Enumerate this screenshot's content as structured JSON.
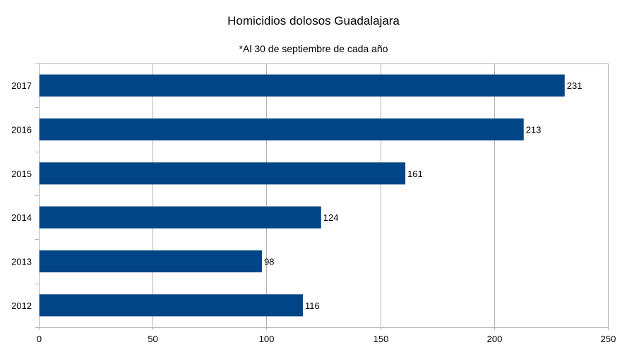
{
  "chart_data": {
    "type": "bar",
    "orientation": "horizontal",
    "title": "Homicidios dolosos Guadalajara",
    "subtitle": "*Al 30 de septiembre de cada año",
    "categories": [
      "2017",
      "2016",
      "2015",
      "2014",
      "2013",
      "2012"
    ],
    "values": [
      231,
      213,
      161,
      124,
      98,
      116
    ],
    "data_labels": [
      "231",
      "213",
      "161",
      "124",
      "98",
      "116"
    ],
    "xlim": [
      0,
      250
    ],
    "xticks": [
      0,
      50,
      100,
      150,
      200,
      250
    ],
    "grid": true,
    "legend": "none",
    "bar_color": "#004586"
  }
}
